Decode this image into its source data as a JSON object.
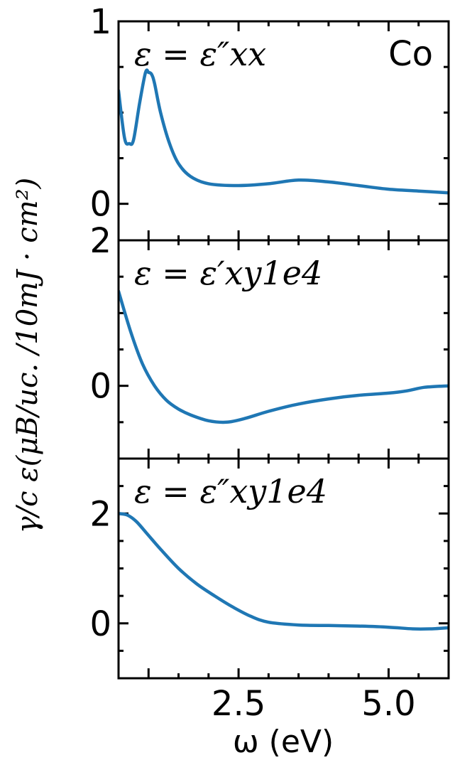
{
  "chart_data": {
    "type": "line",
    "xlabel": "ω (eV)",
    "ylabel": "γ/c ε(μB/uc. /10mJ · cm²)",
    "xlim": [
      0.5,
      6.0
    ],
    "x_ticks": [
      {
        "value": 2.5,
        "label": "2.5"
      },
      {
        "value": 5.0,
        "label": "5.0"
      }
    ],
    "line_color": "#1f77b4",
    "panels": [
      {
        "label": "ε = ε″xx",
        "tag": "Co",
        "ylim": [
          -0.2,
          1.0
        ],
        "y_ticks": [
          {
            "value": 0,
            "label": "0"
          },
          {
            "value": 1,
            "label": "1"
          }
        ],
        "series": [
          {
            "x": [
              0.5,
              0.6,
              0.68,
              0.75,
              0.85,
              0.95,
              1.0,
              1.05,
              1.1,
              1.2,
              1.35,
              1.5,
              1.7,
              2.0,
              2.5,
              3.0,
              3.5,
              4.0,
              4.5,
              5.0,
              5.5,
              6.0
            ],
            "y": [
              0.62,
              0.36,
              0.33,
              0.35,
              0.55,
              0.72,
              0.72,
              0.71,
              0.66,
              0.5,
              0.33,
              0.22,
              0.15,
              0.11,
              0.1,
              0.11,
              0.13,
              0.12,
              0.1,
              0.08,
              0.07,
              0.06
            ]
          }
        ]
      },
      {
        "label": "ε = ε′xy1e4",
        "ylim": [
          -1.0,
          2.0
        ],
        "y_ticks": [
          {
            "value": 0,
            "label": "0"
          },
          {
            "value": 2,
            "label": "2"
          }
        ],
        "series": [
          {
            "x": [
              0.5,
              0.7,
              0.9,
              1.1,
              1.3,
              1.5,
              1.7,
              2.0,
              2.3,
              2.6,
              3.0,
              3.5,
              4.0,
              4.5,
              5.0,
              5.3,
              5.6,
              6.0
            ],
            "y": [
              1.3,
              0.75,
              0.3,
              0.0,
              -0.2,
              -0.32,
              -0.4,
              -0.48,
              -0.5,
              -0.45,
              -0.35,
              -0.25,
              -0.18,
              -0.13,
              -0.1,
              -0.07,
              -0.02,
              0.0
            ]
          }
        ]
      },
      {
        "label": "ε = ε″xy1e4",
        "ylim": [
          -1.0,
          3.0
        ],
        "y_ticks": [
          {
            "value": 0,
            "label": "0"
          },
          {
            "value": 2,
            "label": "2"
          }
        ],
        "series": [
          {
            "x": [
              0.5,
              0.65,
              0.8,
              1.0,
              1.2,
              1.5,
              1.8,
              2.1,
              2.4,
              2.7,
              3.0,
              3.5,
              4.0,
              4.5,
              5.0,
              5.4,
              5.7,
              6.0
            ],
            "y": [
              2.0,
              1.97,
              1.85,
              1.6,
              1.35,
              1.0,
              0.72,
              0.5,
              0.3,
              0.13,
              0.02,
              -0.03,
              -0.04,
              -0.05,
              -0.07,
              -0.1,
              -0.1,
              -0.08
            ]
          }
        ]
      }
    ]
  }
}
